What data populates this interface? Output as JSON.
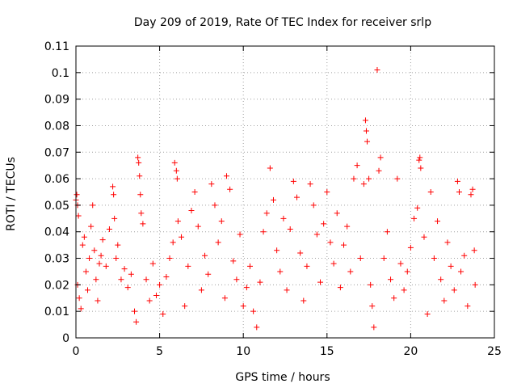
{
  "chart_data": {
    "type": "scatter",
    "title": "Day 209 of 2019, Rate Of TEC Index for receiver srlp",
    "xlabel": "GPS time / hours",
    "ylabel": "ROTI / TECUs",
    "xlim": [
      0,
      25
    ],
    "ylim": [
      0,
      0.11
    ],
    "xticks": [
      "0",
      "5",
      "10",
      "15",
      "20",
      "25"
    ],
    "yticks": [
      "0",
      "0.01",
      "0.02",
      "0.03",
      "0.04",
      "0.05",
      "0.06",
      "0.07",
      "0.08",
      "0.09",
      "0.1",
      "0.11"
    ],
    "grid": true,
    "marker": "plus",
    "series": [
      {
        "name": "ROTI",
        "color": "#ff0000",
        "points": [
          [
            0.0,
            0.052
          ],
          [
            0.05,
            0.054
          ],
          [
            0.1,
            0.05
          ],
          [
            0.15,
            0.046
          ],
          [
            0.1,
            0.02
          ],
          [
            0.2,
            0.015
          ],
          [
            0.3,
            0.011
          ],
          [
            0.4,
            0.035
          ],
          [
            0.5,
            0.038
          ],
          [
            0.6,
            0.025
          ],
          [
            0.7,
            0.018
          ],
          [
            0.8,
            0.03
          ],
          [
            0.9,
            0.042
          ],
          [
            1.0,
            0.05
          ],
          [
            1.1,
            0.033
          ],
          [
            1.2,
            0.022
          ],
          [
            1.3,
            0.014
          ],
          [
            1.4,
            0.028
          ],
          [
            1.5,
            0.031
          ],
          [
            1.6,
            0.037
          ],
          [
            1.8,
            0.027
          ],
          [
            2.0,
            0.041
          ],
          [
            2.2,
            0.057
          ],
          [
            2.25,
            0.054
          ],
          [
            2.3,
            0.045
          ],
          [
            2.4,
            0.03
          ],
          [
            2.5,
            0.035
          ],
          [
            2.7,
            0.022
          ],
          [
            2.9,
            0.026
          ],
          [
            3.1,
            0.019
          ],
          [
            3.3,
            0.024
          ],
          [
            3.5,
            0.01
          ],
          [
            3.6,
            0.006
          ],
          [
            3.7,
            0.068
          ],
          [
            3.75,
            0.066
          ],
          [
            3.8,
            0.061
          ],
          [
            3.85,
            0.054
          ],
          [
            3.9,
            0.047
          ],
          [
            4.0,
            0.043
          ],
          [
            4.2,
            0.022
          ],
          [
            4.4,
            0.014
          ],
          [
            4.6,
            0.028
          ],
          [
            4.8,
            0.016
          ],
          [
            5.0,
            0.02
          ],
          [
            5.2,
            0.009
          ],
          [
            5.4,
            0.023
          ],
          [
            5.6,
            0.03
          ],
          [
            5.8,
            0.036
          ],
          [
            5.9,
            0.066
          ],
          [
            6.0,
            0.063
          ],
          [
            6.05,
            0.06
          ],
          [
            6.1,
            0.044
          ],
          [
            6.3,
            0.038
          ],
          [
            6.5,
            0.012
          ],
          [
            6.7,
            0.027
          ],
          [
            6.9,
            0.048
          ],
          [
            7.1,
            0.055
          ],
          [
            7.3,
            0.042
          ],
          [
            7.5,
            0.018
          ],
          [
            7.7,
            0.031
          ],
          [
            7.9,
            0.024
          ],
          [
            8.1,
            0.058
          ],
          [
            8.3,
            0.05
          ],
          [
            8.5,
            0.036
          ],
          [
            8.7,
            0.044
          ],
          [
            8.9,
            0.015
          ],
          [
            9.0,
            0.061
          ],
          [
            9.2,
            0.056
          ],
          [
            9.4,
            0.029
          ],
          [
            9.6,
            0.022
          ],
          [
            9.8,
            0.039
          ],
          [
            10.0,
            0.012
          ],
          [
            10.2,
            0.019
          ],
          [
            10.4,
            0.027
          ],
          [
            10.6,
            0.01
          ],
          [
            10.8,
            0.004
          ],
          [
            11.0,
            0.021
          ],
          [
            11.2,
            0.04
          ],
          [
            11.4,
            0.047
          ],
          [
            11.6,
            0.064
          ],
          [
            11.8,
            0.052
          ],
          [
            12.0,
            0.033
          ],
          [
            12.2,
            0.025
          ],
          [
            12.4,
            0.045
          ],
          [
            12.6,
            0.018
          ],
          [
            12.8,
            0.041
          ],
          [
            13.0,
            0.059
          ],
          [
            13.2,
            0.053
          ],
          [
            13.4,
            0.032
          ],
          [
            13.6,
            0.014
          ],
          [
            13.8,
            0.027
          ],
          [
            14.0,
            0.058
          ],
          [
            14.2,
            0.05
          ],
          [
            14.4,
            0.039
          ],
          [
            14.6,
            0.021
          ],
          [
            14.8,
            0.043
          ],
          [
            15.0,
            0.055
          ],
          [
            15.2,
            0.036
          ],
          [
            15.4,
            0.028
          ],
          [
            15.6,
            0.047
          ],
          [
            15.8,
            0.019
          ],
          [
            16.0,
            0.035
          ],
          [
            16.2,
            0.042
          ],
          [
            16.4,
            0.025
          ],
          [
            16.6,
            0.06
          ],
          [
            16.8,
            0.065
          ],
          [
            17.0,
            0.03
          ],
          [
            17.2,
            0.058
          ],
          [
            17.3,
            0.082
          ],
          [
            17.35,
            0.078
          ],
          [
            17.4,
            0.074
          ],
          [
            17.5,
            0.06
          ],
          [
            17.6,
            0.02
          ],
          [
            17.7,
            0.012
          ],
          [
            17.8,
            0.004
          ],
          [
            18.0,
            0.101
          ],
          [
            18.1,
            0.063
          ],
          [
            18.2,
            0.068
          ],
          [
            18.4,
            0.03
          ],
          [
            18.6,
            0.04
          ],
          [
            18.8,
            0.022
          ],
          [
            19.0,
            0.015
          ],
          [
            19.2,
            0.06
          ],
          [
            19.4,
            0.028
          ],
          [
            19.6,
            0.018
          ],
          [
            19.8,
            0.025
          ],
          [
            20.0,
            0.034
          ],
          [
            20.2,
            0.045
          ],
          [
            20.4,
            0.049
          ],
          [
            20.5,
            0.067
          ],
          [
            20.55,
            0.068
          ],
          [
            20.6,
            0.064
          ],
          [
            20.8,
            0.038
          ],
          [
            21.0,
            0.009
          ],
          [
            21.2,
            0.055
          ],
          [
            21.4,
            0.03
          ],
          [
            21.6,
            0.044
          ],
          [
            21.8,
            0.022
          ],
          [
            22.0,
            0.014
          ],
          [
            22.2,
            0.036
          ],
          [
            22.4,
            0.027
          ],
          [
            22.6,
            0.018
          ],
          [
            22.8,
            0.059
          ],
          [
            22.9,
            0.055
          ],
          [
            23.0,
            0.025
          ],
          [
            23.2,
            0.031
          ],
          [
            23.4,
            0.012
          ],
          [
            23.6,
            0.054
          ],
          [
            23.7,
            0.056
          ],
          [
            23.8,
            0.033
          ],
          [
            23.85,
            0.02
          ]
        ]
      }
    ]
  }
}
